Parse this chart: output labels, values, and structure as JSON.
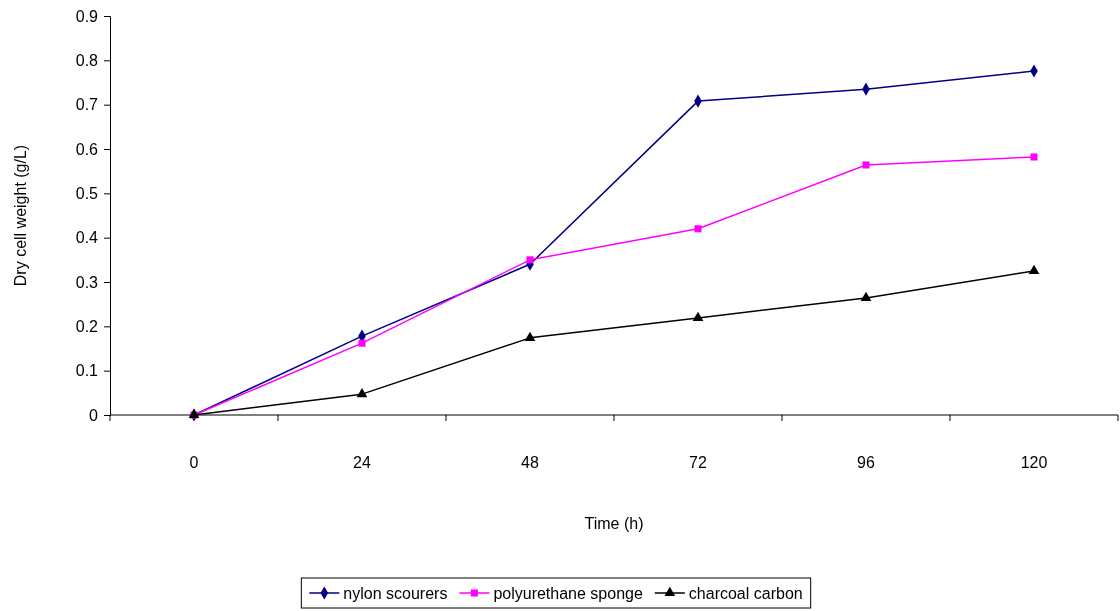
{
  "chart_data": {
    "type": "line",
    "xlabel": "Time (h)",
    "ylabel": "Dry cell weight (g/L)",
    "categories": [
      "0",
      "24",
      "48",
      "72",
      "96",
      "120"
    ],
    "ylim": [
      0,
      0.9
    ],
    "yticks": [
      0,
      0.1,
      0.2,
      0.3,
      0.4,
      0.5,
      0.6,
      0.7,
      0.8,
      0.9
    ],
    "grid": false,
    "legend": "bottom",
    "series": [
      {
        "name": "nylon scourers",
        "color": "#000080",
        "marker": "diamond",
        "values": [
          0,
          0.178,
          0.34,
          0.708,
          0.735,
          0.776
        ]
      },
      {
        "name": "polyurethane sponge",
        "color": "#ff00ff",
        "marker": "square",
        "values": [
          0,
          0.162,
          0.35,
          0.42,
          0.564,
          0.582
        ]
      },
      {
        "name": "charcoal carbon",
        "color": "#000000",
        "marker": "triangle",
        "values": [
          0,
          0.047,
          0.174,
          0.219,
          0.264,
          0.325
        ]
      }
    ]
  }
}
